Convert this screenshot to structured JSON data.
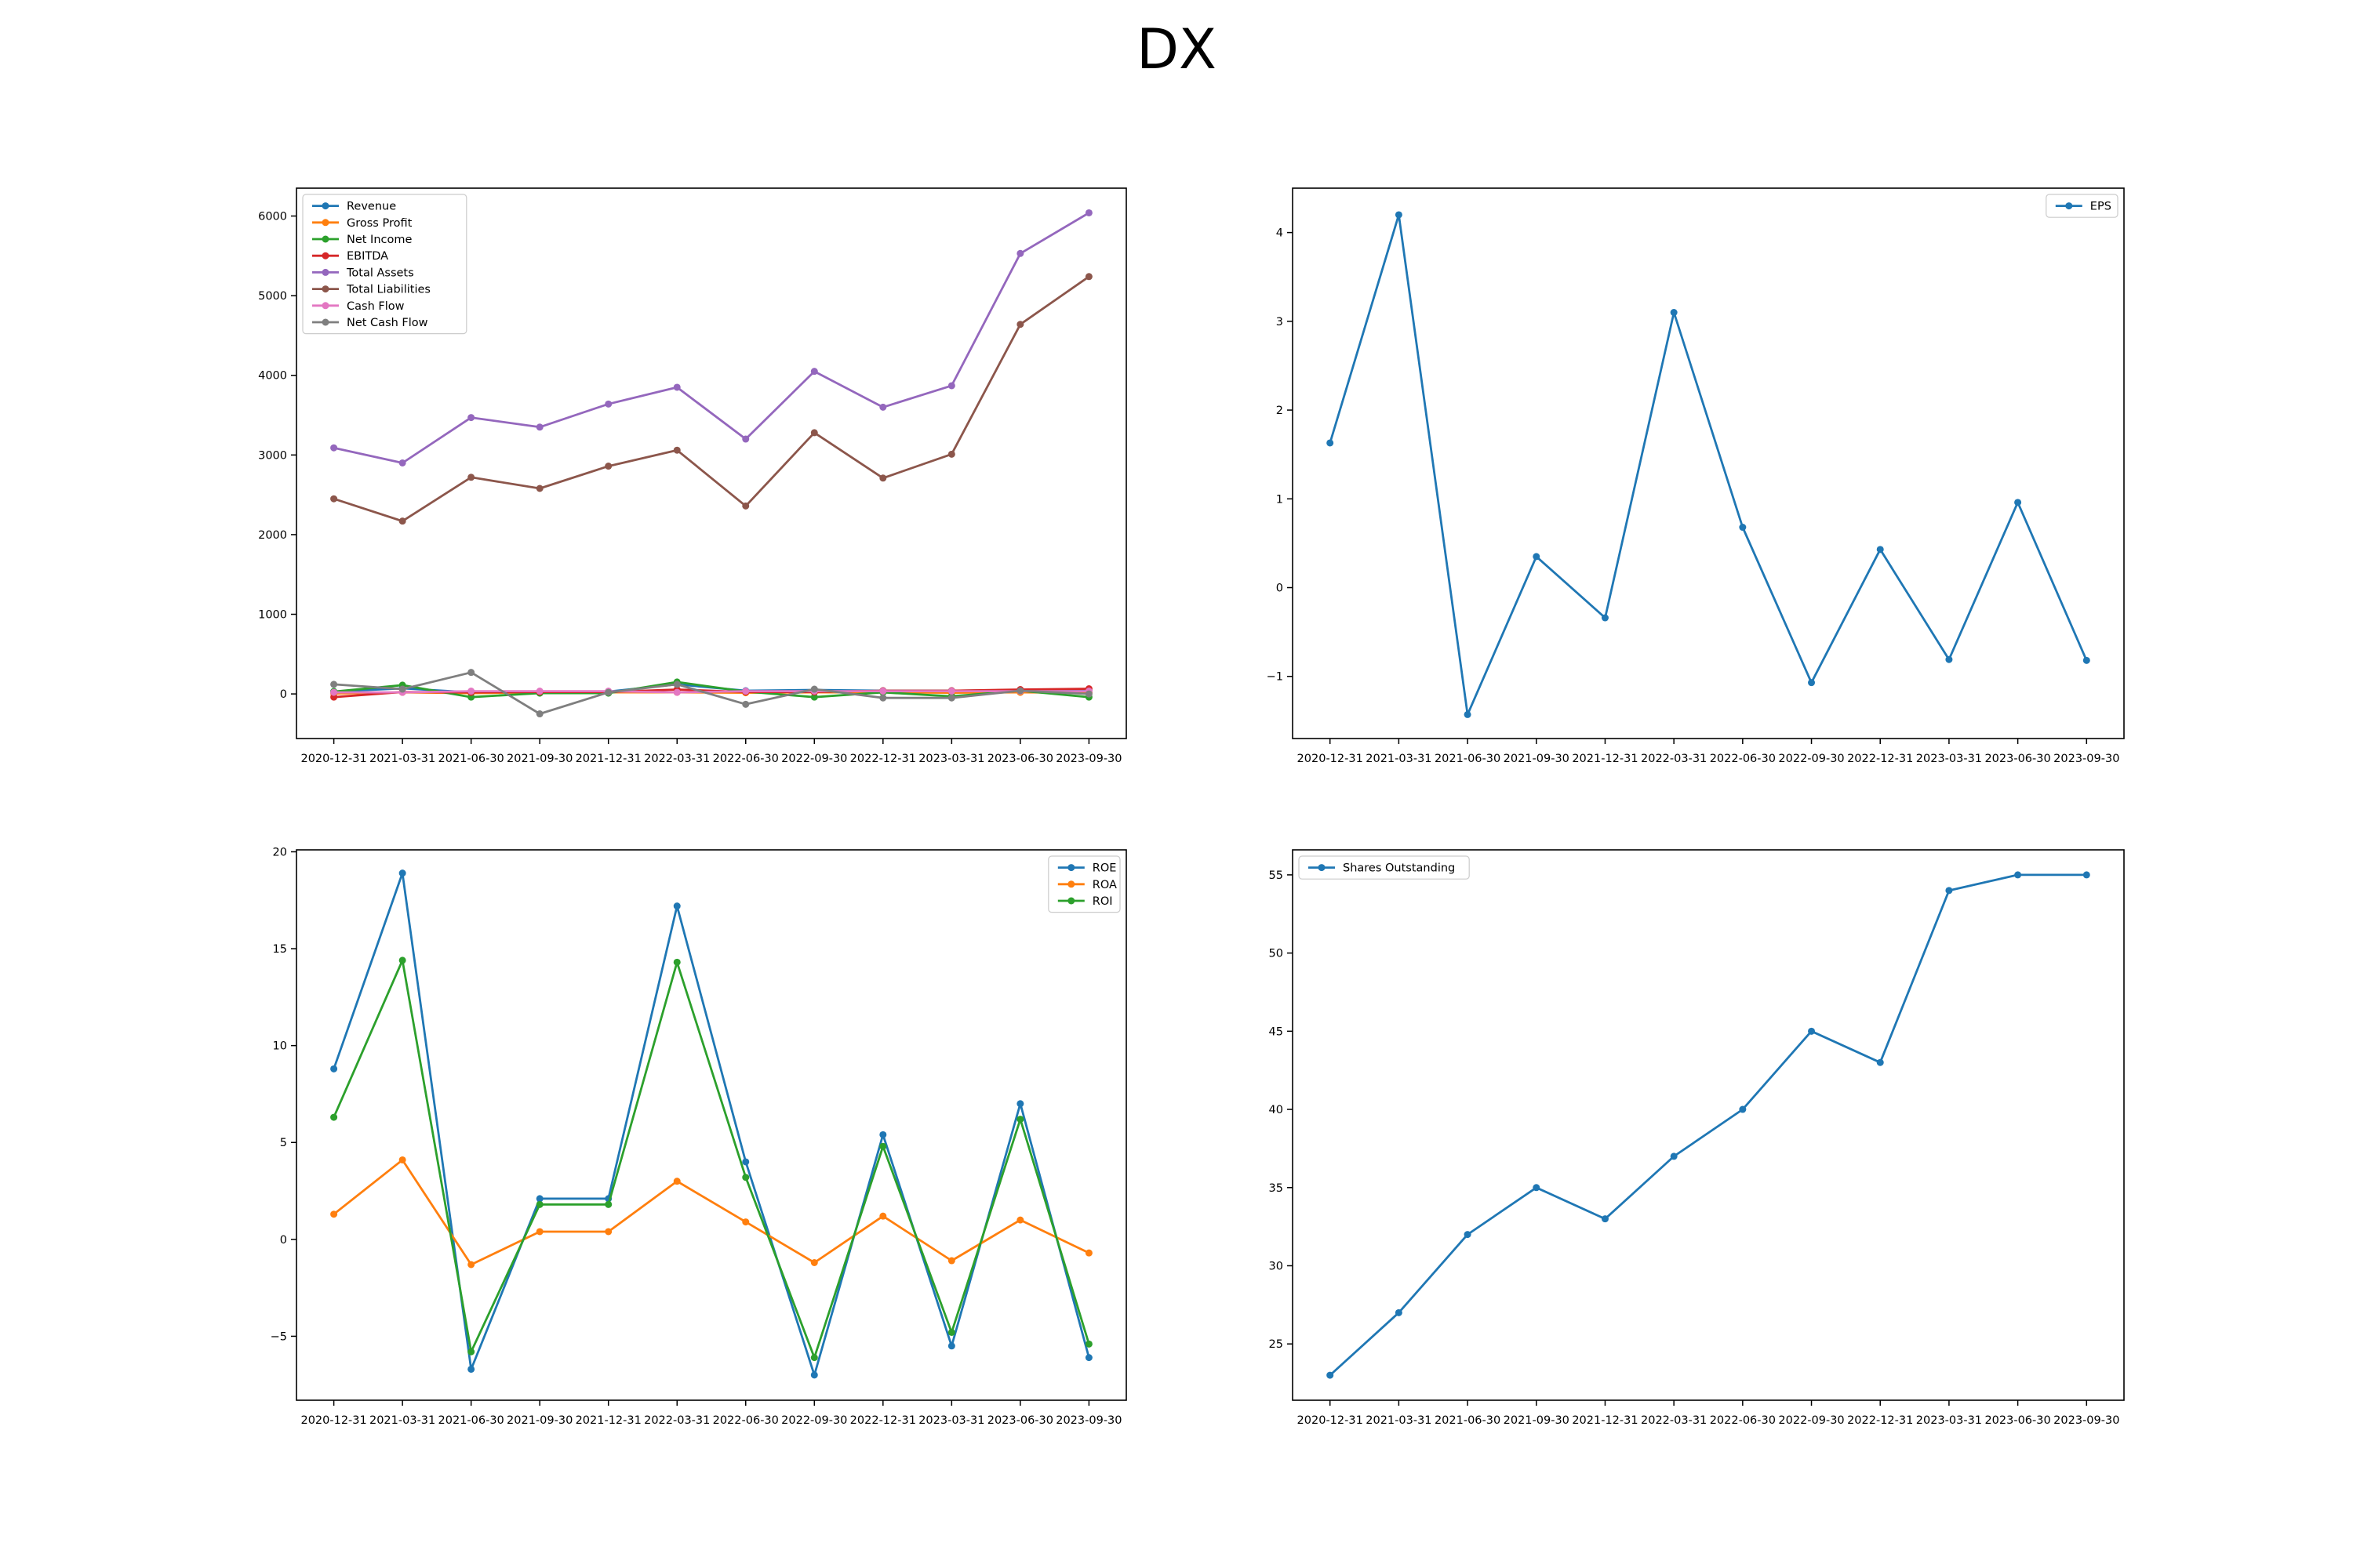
{
  "title": "DX",
  "chart_data": [
    {
      "type": "line",
      "categories": [
        "2020-12-31",
        "2021-03-31",
        "2021-06-30",
        "2021-09-30",
        "2021-12-31",
        "2022-03-31",
        "2022-06-30",
        "2022-09-30",
        "2022-12-31",
        "2023-03-31",
        "2023-06-30",
        "2023-09-30"
      ],
      "ylim": [
        -560,
        6350
      ],
      "yticks": [
        0,
        1000,
        2000,
        3000,
        4000,
        5000,
        6000
      ],
      "legend_position": "top-left",
      "series": [
        {
          "name": "Revenue",
          "color": "#1f77b4",
          "values": [
            30,
            70,
            20,
            30,
            30,
            120,
            40,
            50,
            40,
            40,
            50,
            40
          ]
        },
        {
          "name": "Gross Profit",
          "color": "#ff7f0e",
          "values": [
            5,
            20,
            10,
            20,
            20,
            20,
            15,
            20,
            20,
            15,
            20,
            15
          ]
        },
        {
          "name": "Net Income",
          "color": "#2ca02c",
          "values": [
            30,
            110,
            -40,
            10,
            10,
            150,
            30,
            -40,
            20,
            -30,
            40,
            -40
          ]
        },
        {
          "name": "EBITDA",
          "color": "#d62728",
          "values": [
            -40,
            25,
            20,
            25,
            25,
            55,
            25,
            25,
            40,
            40,
            55,
            65
          ]
        },
        {
          "name": "Total Assets",
          "color": "#9467bd",
          "values": [
            3090,
            2900,
            3470,
            3350,
            3640,
            3850,
            3200,
            4050,
            3600,
            3870,
            5530,
            6040
          ]
        },
        {
          "name": "Total Liabilities",
          "color": "#8c564b",
          "values": [
            2450,
            2170,
            2720,
            2580,
            2860,
            3060,
            2360,
            3280,
            2710,
            3010,
            4640,
            5240
          ]
        },
        {
          "name": "Cash Flow",
          "color": "#e377c2",
          "values": [
            20,
            20,
            35,
            35,
            35,
            20,
            35,
            35,
            35,
            35,
            35,
            35
          ]
        },
        {
          "name": "Net Cash Flow",
          "color": "#7f7f7f",
          "values": [
            120,
            60,
            270,
            -250,
            20,
            120,
            -130,
            60,
            -50,
            -50,
            40,
            0
          ]
        }
      ]
    },
    {
      "type": "line",
      "categories": [
        "2020-12-31",
        "2021-03-31",
        "2021-06-30",
        "2021-09-30",
        "2021-12-31",
        "2022-03-31",
        "2022-06-30",
        "2022-09-30",
        "2022-12-31",
        "2023-03-31",
        "2023-06-30",
        "2023-09-30"
      ],
      "ylim": [
        -1.7,
        4.5
      ],
      "yticks": [
        -1,
        0,
        1,
        2,
        3,
        4
      ],
      "legend_position": "top-right",
      "series": [
        {
          "name": "EPS",
          "color": "#1f77b4",
          "values": [
            1.63,
            4.2,
            -1.43,
            0.35,
            -0.34,
            3.1,
            0.68,
            -1.07,
            0.43,
            -0.81,
            0.96,
            -0.82
          ]
        }
      ]
    },
    {
      "type": "line",
      "categories": [
        "2020-12-31",
        "2021-03-31",
        "2021-06-30",
        "2021-09-30",
        "2021-12-31",
        "2022-03-31",
        "2022-06-30",
        "2022-09-30",
        "2022-12-31",
        "2023-03-31",
        "2023-06-30",
        "2023-09-30"
      ],
      "ylim": [
        -8.3,
        20.1
      ],
      "yticks": [
        -5,
        0,
        5,
        10,
        15,
        20
      ],
      "legend_position": "top-right",
      "series": [
        {
          "name": "ROE",
          "color": "#1f77b4",
          "values": [
            8.8,
            18.9,
            -6.7,
            2.1,
            2.1,
            17.2,
            4.0,
            -7.0,
            5.4,
            -5.5,
            7.0,
            -6.1
          ]
        },
        {
          "name": "ROA",
          "color": "#ff7f0e",
          "values": [
            1.3,
            4.1,
            -1.3,
            0.4,
            0.4,
            3.0,
            0.9,
            -1.2,
            1.2,
            -1.1,
            1.0,
            -0.7
          ]
        },
        {
          "name": "ROI",
          "color": "#2ca02c",
          "values": [
            6.3,
            14.4,
            -5.8,
            1.8,
            1.8,
            14.3,
            3.2,
            -6.1,
            4.8,
            -4.8,
            6.2,
            -5.4
          ]
        }
      ]
    },
    {
      "type": "line",
      "categories": [
        "2020-12-31",
        "2021-03-31",
        "2021-06-30",
        "2021-09-30",
        "2021-12-31",
        "2022-03-31",
        "2022-06-30",
        "2022-09-30",
        "2022-12-31",
        "2023-03-31",
        "2023-06-30",
        "2023-09-30"
      ],
      "ylim": [
        21.4,
        56.6
      ],
      "yticks": [
        25,
        30,
        35,
        40,
        45,
        50,
        55
      ],
      "legend_position": "top-left",
      "series": [
        {
          "name": "Shares Outstanding",
          "color": "#1f77b4",
          "values": [
            23,
            27,
            32,
            35,
            33,
            37,
            40,
            45,
            43,
            54,
            55,
            55
          ]
        }
      ]
    }
  ]
}
